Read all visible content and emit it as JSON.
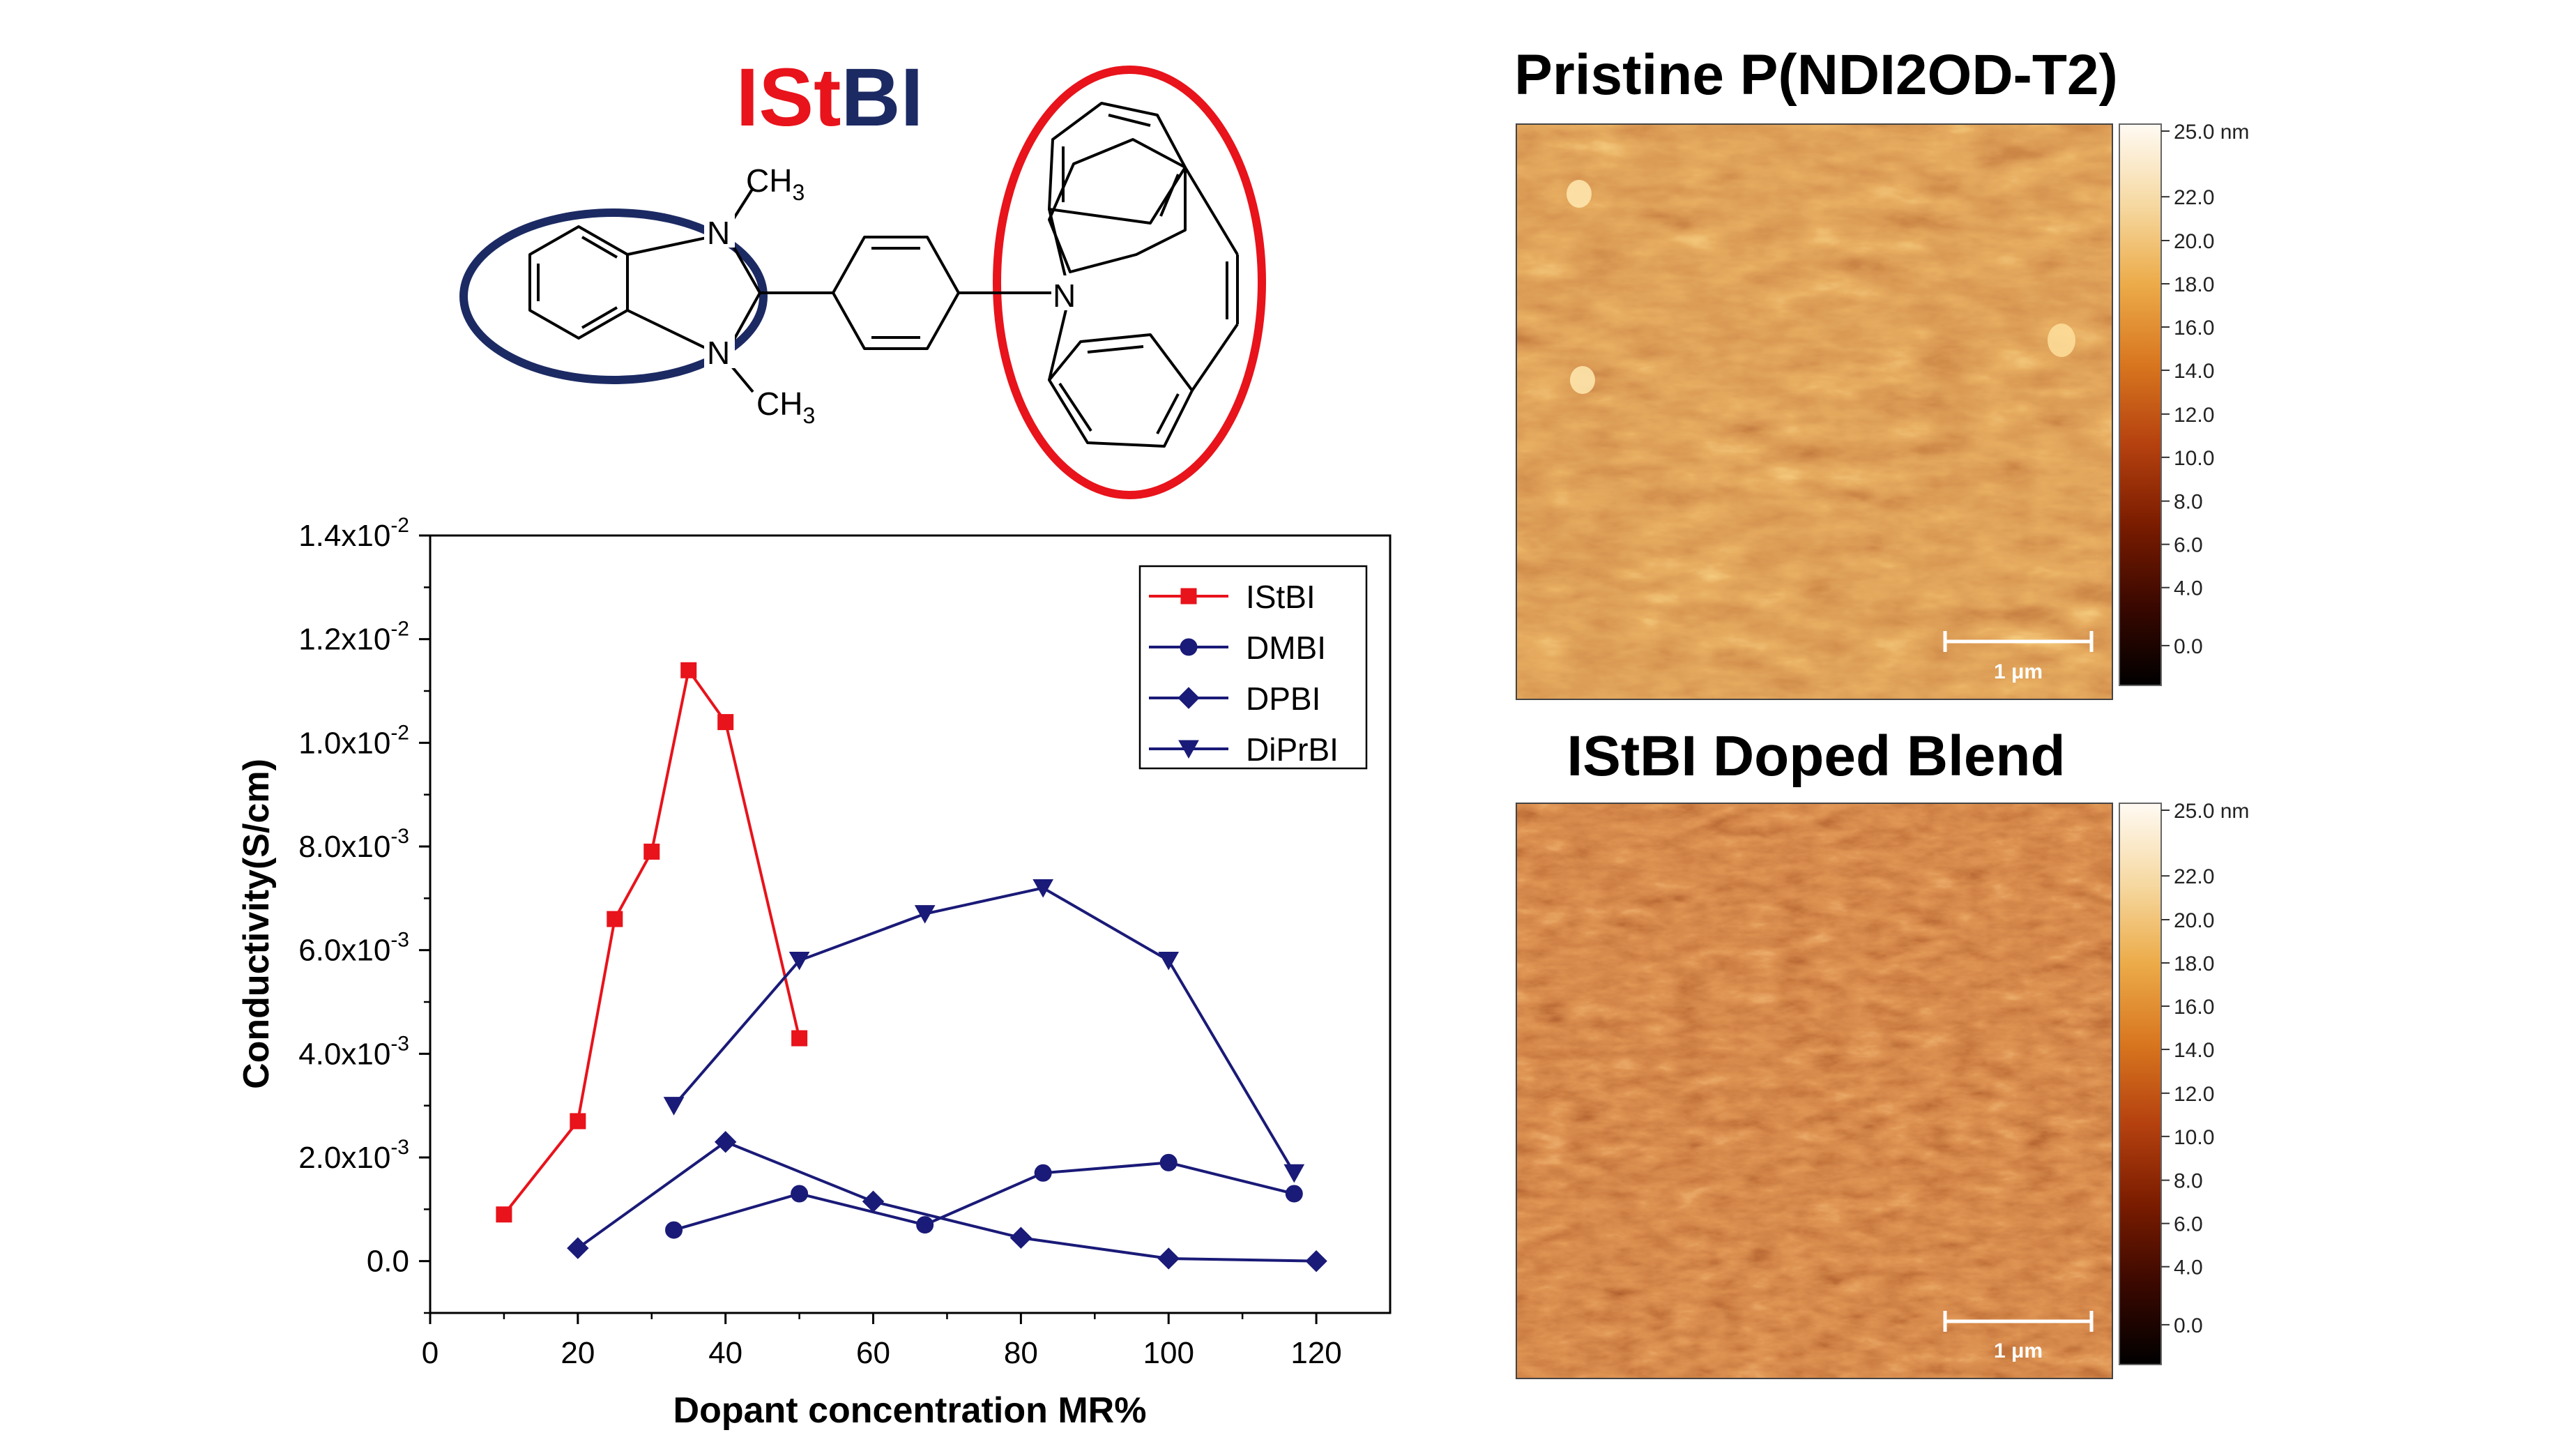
{
  "molecule": {
    "name_part1": "ISt",
    "name_part2": "BI",
    "name_color1": "#e8131b",
    "name_color2": "#1c2a63",
    "ch3_top": "CH",
    "ch3_top_sub": "3",
    "ch3_bottom": "CH",
    "ch3_bottom_sub": "3",
    "atom_n": "N",
    "ellipse_left_color": "#1c2a63",
    "ellipse_right_color": "#e8131b"
  },
  "afm_top": {
    "title": "Pristine P(NDI2OD-T2)",
    "scalebar_label": "1 μm"
  },
  "afm_bottom": {
    "title": "IStBI Doped Blend",
    "scalebar_label": "1 μm"
  },
  "colorbar": {
    "ticks": [
      "25.0 nm",
      "22.0",
      "20.0",
      "18.0",
      "16.0",
      "14.0",
      "12.0",
      "10.0",
      "8.0",
      "6.0",
      "4.0",
      "0.0"
    ],
    "colors": [
      "#000000",
      "#3a0800",
      "#7a1c00",
      "#b5410f",
      "#d8761f",
      "#ecab49",
      "#f6d9a2",
      "#fffaf3"
    ]
  },
  "chart_data": {
    "type": "line",
    "xlabel": "Dopant concentration MR%",
    "ylabel": "Conductivity(S/cm)",
    "xlim": [
      0,
      130
    ],
    "ylim": [
      -0.001,
      0.014
    ],
    "xticks": [
      0,
      20,
      40,
      60,
      80,
      100,
      120
    ],
    "xtick_labels": [
      "0",
      "20",
      "40",
      "60",
      "80",
      "100",
      "120"
    ],
    "yticks": [
      {
        "value": 0.0,
        "base": "0.0",
        "exp": ""
      },
      {
        "value": 0.002,
        "base": "2.0x10",
        "exp": "-3"
      },
      {
        "value": 0.004,
        "base": "4.0x10",
        "exp": "-3"
      },
      {
        "value": 0.006,
        "base": "6.0x10",
        "exp": "-3"
      },
      {
        "value": 0.008,
        "base": "8.0x10",
        "exp": "-3"
      },
      {
        "value": 0.01,
        "base": "1.0x10",
        "exp": "-2"
      },
      {
        "value": 0.012,
        "base": "1.2x10",
        "exp": "-2"
      },
      {
        "value": 0.014,
        "base": "1.4x10",
        "exp": "-2"
      }
    ],
    "legend_position": "top-right",
    "series": [
      {
        "name": "IStBI",
        "color": "#e8131b",
        "marker": "square",
        "x": [
          10,
          20,
          25,
          30,
          35,
          40,
          50
        ],
        "y": [
          0.0009,
          0.0027,
          0.0066,
          0.0079,
          0.0114,
          0.0104,
          0.0043
        ]
      },
      {
        "name": "DMBI",
        "color": "#1a1a78",
        "marker": "circle",
        "x": [
          33,
          50,
          67,
          83,
          100,
          117
        ],
        "y": [
          0.0006,
          0.0013,
          0.0007,
          0.0017,
          0.0019,
          0.0013
        ]
      },
      {
        "name": "DPBI",
        "color": "#1a1a78",
        "marker": "diamond",
        "x": [
          20,
          40,
          60,
          80,
          100,
          120
        ],
        "y": [
          0.00025,
          0.0023,
          0.00115,
          0.00045,
          5e-05,
          0.0
        ]
      },
      {
        "name": "DiPrBI",
        "color": "#1a1a78",
        "marker": "triangle-down",
        "x": [
          33,
          50,
          67,
          83,
          100,
          117
        ],
        "y": [
          0.003,
          0.0058,
          0.0067,
          0.0072,
          0.0058,
          0.0017
        ]
      }
    ]
  }
}
